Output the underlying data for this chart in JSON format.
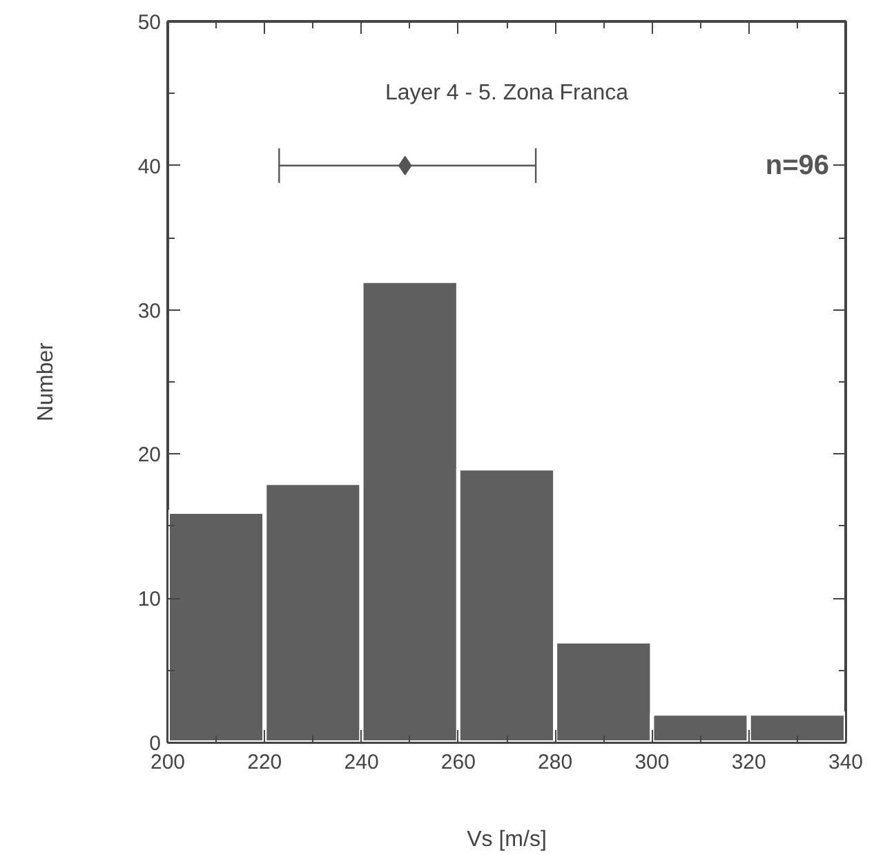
{
  "chart_data": {
    "type": "histogram",
    "title": "Layer 4 - 5. Zona Franca",
    "xlabel": "Vs [m/s]",
    "ylabel": "Number",
    "bins": [
      200,
      220,
      240,
      260,
      280,
      300,
      320,
      340
    ],
    "values": [
      16,
      18,
      32,
      19,
      7,
      2,
      2
    ],
    "color": "#5f5f5f",
    "series": [
      {
        "type": "scatter",
        "x": [
          249
        ],
        "values": [
          40
        ],
        "xerrors": [
          [
            223,
            276
          ]
        ],
        "color": "#555555"
      }
    ],
    "marker": "diamond",
    "annotations": [
      "n=96"
    ],
    "xlim": [
      200,
      340
    ],
    "ylim": [
      0,
      50
    ],
    "xticks": [
      200,
      220,
      240,
      260,
      280,
      300,
      320,
      340
    ],
    "yticks": [
      0,
      10,
      20,
      30,
      40,
      50
    ],
    "grid": false
  }
}
